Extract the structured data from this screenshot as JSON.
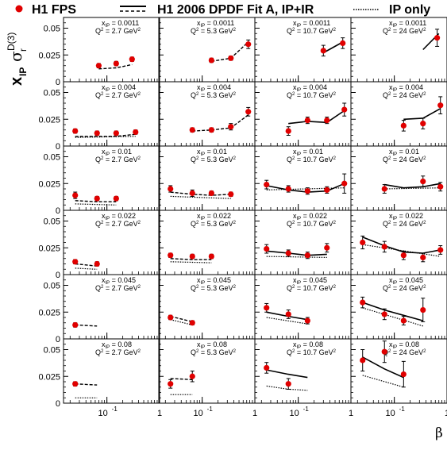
{
  "legend": {
    "data_label": "H1 FPS",
    "fitA_label": "H1 2006 DPDF Fit A, IP+IR",
    "ip_label": "IP only"
  },
  "axes": {
    "ylabel": "x",
    "ylabel_sub": "IP",
    "ylabel_sigma": "σ",
    "ylabel_sup": "D(3)",
    "ylabel_r": "r",
    "xlabel": "β",
    "y_ticks": [
      "0",
      "0.025",
      "0.05"
    ],
    "x_ticks": [
      "10",
      "-1",
      "1"
    ]
  },
  "chart_data": {
    "type": "scatter",
    "xlabel": "β",
    "x_log": true,
    "xlim": [
      0.015,
      1
    ],
    "ylim": [
      0,
      0.06
    ],
    "columns_Q2": [
      "2.7 GeV²",
      "5.3 GeV²",
      "10.7 GeV²",
      "24 GeV²"
    ],
    "rows_xIP": [
      "0.0011",
      "0.004",
      "0.01",
      "0.022",
      "0.045",
      "0.08"
    ],
    "label_xIP_prefix": "x",
    "label_xIP_sub": "IP",
    "label_Q2_prefix": "Q",
    "label_Q2_sup": "2",
    "series_names": [
      "H1 FPS",
      "H1 2006 DPDF Fit A, IP+IR",
      "IP only"
    ],
    "panels": [
      {
        "row": 0,
        "col": 0,
        "xIP": "0.0011",
        "Q2": "2.7 GeV²",
        "points": [
          [
            0.07,
            0.015,
            0.002
          ],
          [
            0.15,
            0.017,
            0.002
          ],
          [
            0.3,
            0.021,
            0.002
          ]
        ],
        "fit": [
          [
            0.07,
            0.012
          ],
          [
            0.15,
            0.013
          ],
          [
            0.3,
            0.016
          ]
        ],
        "fit_style": "dashed",
        "ip": []
      },
      {
        "row": 0,
        "col": 1,
        "xIP": "0.0011",
        "Q2": "5.3 GeV²",
        "points": [
          [
            0.15,
            0.02,
            0.002
          ],
          [
            0.35,
            0.022,
            0.002
          ],
          [
            0.75,
            0.035,
            0.004
          ]
        ],
        "fit": [
          [
            0.15,
            0.019
          ],
          [
            0.35,
            0.022
          ],
          [
            0.75,
            0.037
          ]
        ],
        "fit_style": "dashed",
        "ip": []
      },
      {
        "row": 0,
        "col": 2,
        "xIP": "0.0011",
        "Q2": "10.7 GeV²",
        "points": [
          [
            0.3,
            0.029,
            0.005
          ],
          [
            0.7,
            0.036,
            0.005
          ]
        ],
        "fit": [
          [
            0.3,
            0.027
          ],
          [
            0.7,
            0.037
          ]
        ],
        "fit_style": "solid",
        "ip": []
      },
      {
        "row": 0,
        "col": 3,
        "xIP": "0.0011",
        "Q2": "24 GeV²",
        "points": [
          [
            0.65,
            0.041,
            0.008
          ]
        ],
        "fit": [
          [
            0.35,
            0.03
          ],
          [
            0.7,
            0.045
          ]
        ],
        "fit_style": "solid",
        "ip": []
      },
      {
        "row": 1,
        "col": 0,
        "xIP": "0.004",
        "Q2": "2.7 GeV²",
        "points": [
          [
            0.025,
            0.014,
            0.002
          ],
          [
            0.065,
            0.012,
            0.002
          ],
          [
            0.15,
            0.012,
            0.002
          ],
          [
            0.35,
            0.013,
            0.002
          ]
        ],
        "fit": [
          [
            0.025,
            0.009
          ],
          [
            0.065,
            0.009
          ],
          [
            0.15,
            0.009
          ],
          [
            0.35,
            0.011
          ]
        ],
        "fit_style": "dashed",
        "ip": [
          [
            0.025,
            0.008
          ],
          [
            0.35,
            0.009
          ]
        ]
      },
      {
        "row": 1,
        "col": 1,
        "xIP": "0.004",
        "Q2": "5.3 GeV²",
        "points": [
          [
            0.065,
            0.015,
            0.002
          ],
          [
            0.15,
            0.015,
            0.002
          ],
          [
            0.35,
            0.018,
            0.003
          ],
          [
            0.75,
            0.032,
            0.004
          ]
        ],
        "fit": [
          [
            0.065,
            0.014
          ],
          [
            0.15,
            0.015
          ],
          [
            0.35,
            0.017
          ],
          [
            0.75,
            0.029
          ]
        ],
        "fit_style": "dashed",
        "ip": []
      },
      {
        "row": 1,
        "col": 2,
        "xIP": "0.004",
        "Q2": "10.7 GeV²",
        "points": [
          [
            0.065,
            0.014,
            0.004
          ],
          [
            0.15,
            0.024,
            0.003
          ],
          [
            0.35,
            0.024,
            0.003
          ],
          [
            0.75,
            0.034,
            0.006
          ]
        ],
        "fit": [
          [
            0.065,
            0.021
          ],
          [
            0.15,
            0.023
          ],
          [
            0.35,
            0.022
          ],
          [
            0.75,
            0.033
          ]
        ],
        "fit_style": "solid",
        "ip": []
      },
      {
        "row": 1,
        "col": 3,
        "xIP": "0.004",
        "Q2": "24 GeV²",
        "points": [
          [
            0.15,
            0.019,
            0.005
          ],
          [
            0.35,
            0.021,
            0.005
          ],
          [
            0.75,
            0.038,
            0.008
          ]
        ],
        "fit": [
          [
            0.15,
            0.025
          ],
          [
            0.35,
            0.026
          ],
          [
            0.75,
            0.035
          ]
        ],
        "fit_style": "solid",
        "ip": []
      },
      {
        "row": 2,
        "col": 0,
        "xIP": "0.01",
        "Q2": "2.7 GeV²",
        "points": [
          [
            0.025,
            0.014,
            0.003
          ],
          [
            0.065,
            0.011,
            0.002
          ],
          [
            0.15,
            0.011,
            0.002
          ]
        ],
        "fit": [
          [
            0.025,
            0.009
          ],
          [
            0.065,
            0.008
          ],
          [
            0.15,
            0.008
          ]
        ],
        "fit_style": "dashed",
        "ip": [
          [
            0.025,
            0.006
          ],
          [
            0.15,
            0.005
          ]
        ]
      },
      {
        "row": 2,
        "col": 1,
        "xIP": "0.01",
        "Q2": "5.3 GeV²",
        "points": [
          [
            0.025,
            0.02,
            0.003
          ],
          [
            0.065,
            0.016,
            0.003
          ],
          [
            0.15,
            0.016,
            0.002
          ],
          [
            0.35,
            0.015,
            0.002
          ]
        ],
        "fit": [
          [
            0.025,
            0.017
          ],
          [
            0.065,
            0.015
          ],
          [
            0.15,
            0.014
          ],
          [
            0.35,
            0.015
          ]
        ],
        "fit_style": "dashed",
        "ip": [
          [
            0.025,
            0.013
          ],
          [
            0.35,
            0.011
          ]
        ]
      },
      {
        "row": 2,
        "col": 2,
        "xIP": "0.01",
        "Q2": "10.7 GeV²",
        "points": [
          [
            0.025,
            0.024,
            0.004
          ],
          [
            0.065,
            0.02,
            0.003
          ],
          [
            0.15,
            0.018,
            0.003
          ],
          [
            0.35,
            0.019,
            0.003
          ],
          [
            0.75,
            0.025,
            0.009
          ]
        ],
        "fit": [
          [
            0.025,
            0.023
          ],
          [
            0.065,
            0.019
          ],
          [
            0.15,
            0.017
          ],
          [
            0.35,
            0.018
          ],
          [
            0.75,
            0.025
          ]
        ],
        "fit_style": "solid",
        "ip": [
          [
            0.025,
            0.019
          ],
          [
            0.75,
            0.021
          ]
        ]
      },
      {
        "row": 2,
        "col": 3,
        "xIP": "0.01",
        "Q2": "24 GeV²",
        "points": [
          [
            0.065,
            0.02,
            0.004
          ],
          [
            0.35,
            0.027,
            0.005
          ],
          [
            0.75,
            0.022,
            0.004
          ]
        ],
        "fit": [
          [
            0.065,
            0.024
          ],
          [
            0.15,
            0.021
          ],
          [
            0.35,
            0.022
          ],
          [
            0.75,
            0.025
          ]
        ],
        "fit_style": "solid",
        "ip": [
          [
            0.065,
            0.02
          ],
          [
            0.75,
            0.021
          ]
        ]
      },
      {
        "row": 3,
        "col": 0,
        "xIP": "0.022",
        "Q2": "2.7 GeV²",
        "points": [
          [
            0.025,
            0.012,
            0.002
          ],
          [
            0.065,
            0.01,
            0.002
          ]
        ],
        "fit": [
          [
            0.025,
            0.01
          ],
          [
            0.065,
            0.008
          ]
        ],
        "fit_style": "dashed",
        "ip": [
          [
            0.025,
            0.006
          ],
          [
            0.065,
            0.005
          ]
        ]
      },
      {
        "row": 3,
        "col": 1,
        "xIP": "0.022",
        "Q2": "5.3 GeV²",
        "points": [
          [
            0.025,
            0.018,
            0.002
          ],
          [
            0.065,
            0.017,
            0.002
          ],
          [
            0.15,
            0.017,
            0.002
          ]
        ],
        "fit": [
          [
            0.025,
            0.015
          ],
          [
            0.065,
            0.014
          ],
          [
            0.15,
            0.014
          ]
        ],
        "fit_style": "dashed",
        "ip": [
          [
            0.025,
            0.012
          ],
          [
            0.15,
            0.011
          ]
        ]
      },
      {
        "row": 3,
        "col": 2,
        "xIP": "0.022",
        "Q2": "10.7 GeV²",
        "points": [
          [
            0.025,
            0.024,
            0.004
          ],
          [
            0.065,
            0.02,
            0.003
          ],
          [
            0.15,
            0.018,
            0.003
          ],
          [
            0.35,
            0.025,
            0.004
          ]
        ],
        "fit": [
          [
            0.025,
            0.022
          ],
          [
            0.065,
            0.02
          ],
          [
            0.15,
            0.018
          ],
          [
            0.35,
            0.019
          ]
        ],
        "fit_style": "solid",
        "ip": [
          [
            0.025,
            0.017
          ],
          [
            0.35,
            0.016
          ]
        ]
      },
      {
        "row": 3,
        "col": 3,
        "xIP": "0.022",
        "Q2": "24 GeV²",
        "points": [
          [
            0.025,
            0.03,
            0.006
          ],
          [
            0.065,
            0.026,
            0.005
          ],
          [
            0.15,
            0.018,
            0.004
          ],
          [
            0.35,
            0.016,
            0.004
          ],
          [
            0.75,
            0.023,
            0.004
          ]
        ],
        "fit": [
          [
            0.025,
            0.035
          ],
          [
            0.065,
            0.027
          ],
          [
            0.15,
            0.021
          ],
          [
            0.35,
            0.02
          ],
          [
            0.75,
            0.023
          ]
        ],
        "fit_style": "solid",
        "ip": [
          [
            0.025,
            0.028
          ],
          [
            0.75,
            0.017
          ]
        ]
      },
      {
        "row": 4,
        "col": 0,
        "xIP": "0.045",
        "Q2": "2.7 GeV²",
        "points": [
          [
            0.025,
            0.013,
            0.002
          ]
        ],
        "fit": [
          [
            0.025,
            0.013
          ],
          [
            0.065,
            0.012
          ]
        ],
        "fit_style": "dashed",
        "ip": []
      },
      {
        "row": 4,
        "col": 1,
        "xIP": "0.045",
        "Q2": "5.3 GeV²",
        "points": [
          [
            0.025,
            0.02,
            0.002
          ],
          [
            0.065,
            0.015,
            0.002
          ]
        ],
        "fit": [
          [
            0.025,
            0.021
          ],
          [
            0.065,
            0.016
          ]
        ],
        "fit_style": "dashed",
        "ip": [
          [
            0.025,
            0.018
          ],
          [
            0.065,
            0.013
          ]
        ]
      },
      {
        "row": 4,
        "col": 2,
        "xIP": "0.045",
        "Q2": "10.7 GeV²",
        "points": [
          [
            0.025,
            0.029,
            0.004
          ],
          [
            0.065,
            0.023,
            0.004
          ],
          [
            0.15,
            0.017,
            0.003
          ]
        ],
        "fit": [
          [
            0.025,
            0.025
          ],
          [
            0.065,
            0.021
          ],
          [
            0.15,
            0.018
          ]
        ],
        "fit_style": "solid",
        "ip": [
          [
            0.025,
            0.02
          ],
          [
            0.15,
            0.014
          ]
        ]
      },
      {
        "row": 4,
        "col": 3,
        "xIP": "0.045",
        "Q2": "24 GeV²",
        "points": [
          [
            0.025,
            0.034,
            0.005
          ],
          [
            0.065,
            0.023,
            0.005
          ],
          [
            0.15,
            0.017,
            0.004
          ],
          [
            0.35,
            0.027,
            0.011
          ]
        ],
        "fit": [
          [
            0.025,
            0.034
          ],
          [
            0.065,
            0.027
          ],
          [
            0.15,
            0.022
          ],
          [
            0.35,
            0.017
          ]
        ],
        "fit_style": "solid",
        "ip": [
          [
            0.025,
            0.029
          ],
          [
            0.35,
            0.012
          ]
        ]
      },
      {
        "row": 5,
        "col": 0,
        "xIP": "0.08",
        "Q2": "2.7 GeV²",
        "points": [
          [
            0.025,
            0.018,
            0.002
          ]
        ],
        "fit": [
          [
            0.025,
            0.018
          ],
          [
            0.065,
            0.017
          ]
        ],
        "fit_style": "dashed",
        "ip": [
          [
            0.025,
            0.005
          ],
          [
            0.065,
            0.005
          ]
        ]
      },
      {
        "row": 5,
        "col": 1,
        "xIP": "0.08",
        "Q2": "5.3 GeV²",
        "points": [
          [
            0.025,
            0.018,
            0.004
          ],
          [
            0.065,
            0.025,
            0.005
          ]
        ],
        "fit": [
          [
            0.025,
            0.023
          ],
          [
            0.065,
            0.022
          ]
        ],
        "fit_style": "dashed",
        "ip": [
          [
            0.025,
            0.008
          ],
          [
            0.065,
            0.008
          ]
        ]
      },
      {
        "row": 5,
        "col": 2,
        "xIP": "0.08",
        "Q2": "10.7 GeV²",
        "points": [
          [
            0.025,
            0.033,
            0.005
          ],
          [
            0.065,
            0.018,
            0.005
          ]
        ],
        "fit": [
          [
            0.025,
            0.031
          ],
          [
            0.065,
            0.027
          ],
          [
            0.15,
            0.024
          ]
        ],
        "fit_style": "solid",
        "ip": [
          [
            0.025,
            0.016
          ],
          [
            0.065,
            0.013
          ],
          [
            0.15,
            0.012
          ]
        ]
      },
      {
        "row": 5,
        "col": 3,
        "xIP": "0.08",
        "Q2": "24 GeV²",
        "points": [
          [
            0.025,
            0.04,
            0.01
          ],
          [
            0.065,
            0.048,
            0.01
          ],
          [
            0.15,
            0.027,
            0.012
          ]
        ],
        "fit": [
          [
            0.025,
            0.043
          ],
          [
            0.065,
            0.032
          ],
          [
            0.15,
            0.024
          ]
        ],
        "fit_style": "solid",
        "ip": [
          [
            0.025,
            0.026
          ],
          [
            0.15,
            0.015
          ]
        ]
      }
    ]
  }
}
